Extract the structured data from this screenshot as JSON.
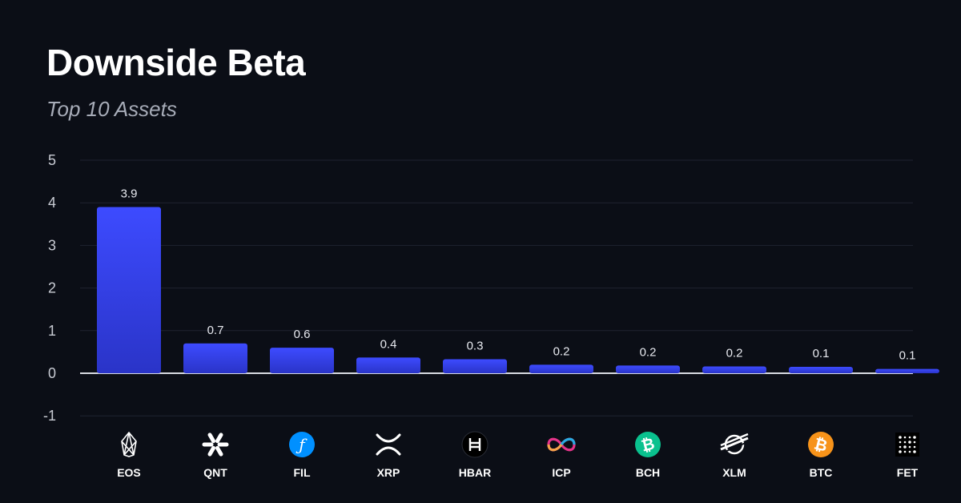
{
  "header": {
    "title": "Downside Beta",
    "subtitle": "Top 10 Assets"
  },
  "colors": {
    "background": "#0b0e16",
    "bar_top": "#3d4bff",
    "bar_bottom": "#2a34c8",
    "grid": "#1f2330",
    "zero_line": "#d8dbe2"
  },
  "chart_data": {
    "type": "bar",
    "title": "Downside Beta",
    "subtitle": "Top 10 Assets",
    "xlabel": "",
    "ylabel": "",
    "ylim": [
      -1,
      5
    ],
    "yticks": [
      5,
      4,
      3,
      2,
      1,
      0,
      -1
    ],
    "grid": true,
    "categories": [
      "EOS",
      "QNT",
      "FIL",
      "XRP",
      "HBAR",
      "ICP",
      "BCH",
      "XLM",
      "BTC",
      "FET"
    ],
    "values": [
      3.9,
      0.7,
      0.6,
      0.4,
      0.3,
      0.2,
      0.2,
      0.2,
      0.1,
      0.1
    ],
    "bar_heights": [
      3.9,
      0.7,
      0.6,
      0.37,
      0.33,
      0.2,
      0.18,
      0.16,
      0.15,
      0.1
    ],
    "value_labels": [
      "3.9",
      "0.7",
      "0.6",
      "0.4",
      "0.3",
      "0.2",
      "0.2",
      "0.2",
      "0.1",
      "0.1"
    ],
    "icons": [
      "eos-icon",
      "qnt-icon",
      "fil-icon",
      "xrp-icon",
      "hbar-icon",
      "icp-icon",
      "bch-icon",
      "xlm-icon",
      "btc-icon",
      "fet-icon"
    ]
  }
}
